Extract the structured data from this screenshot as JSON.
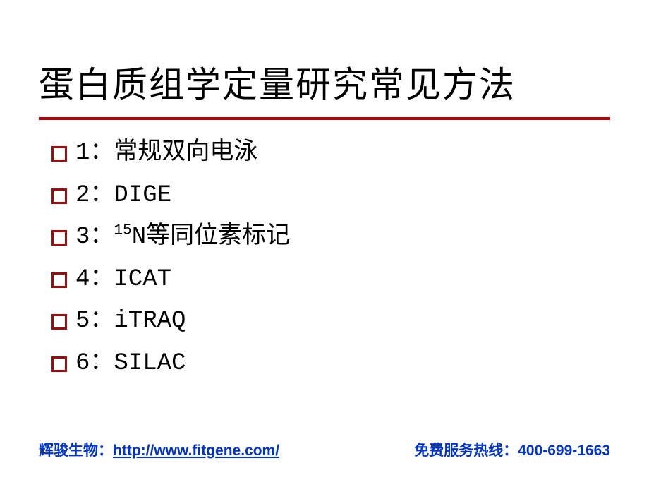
{
  "title": "蛋白质组学定量研究常见方法",
  "accent_color": "#a30b0b",
  "text_color": "#000000",
  "link_color": "#0033cc",
  "background_color": "#ffffff",
  "list": {
    "bullet_border_color": "#a30b0b",
    "items": [
      {
        "label_html": "1：常规双向电泳"
      },
      {
        "label_html": "2：DIGE"
      },
      {
        "label_html": "3：<sup>15</sup>N等同位素标记"
      },
      {
        "label_html": "4：ICAT"
      },
      {
        "label_html": "5：iTRAQ"
      },
      {
        "label_html": "6：SILAC"
      }
    ]
  },
  "footer": {
    "org_label": "辉骏生物：",
    "url": "http://www.fitgene.com/",
    "hotline_label": "免费服务热线：",
    "phone": "400-699-1663"
  }
}
